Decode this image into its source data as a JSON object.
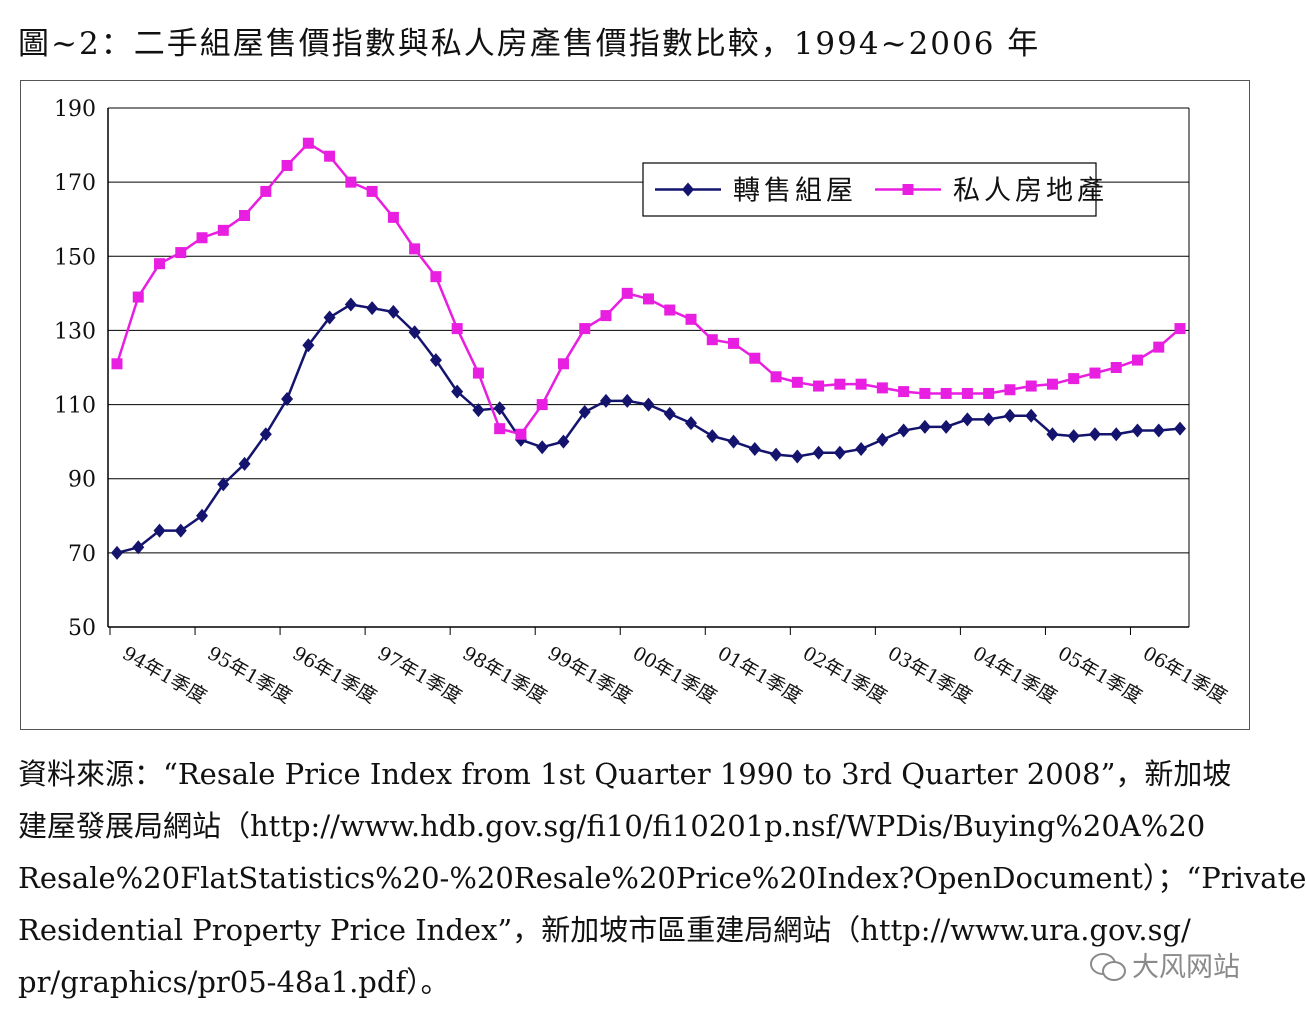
{
  "title": "圖~2：二手組屋售價指數與私人房產售價指數比較，1994~2006 年",
  "chart_data": {
    "type": "line",
    "ylim": [
      50,
      190
    ],
    "yticks": [
      50,
      70,
      90,
      110,
      130,
      150,
      170,
      190
    ],
    "x_tick_labels": [
      "94年1季度",
      "95年1季度",
      "96年1季度",
      "97年1季度",
      "98年1季度",
      "99年1季度",
      "00年1季度",
      "01年1季度",
      "02年1季度",
      "03年1季度",
      "04年1季度",
      "05年1季度",
      "06年1季度"
    ],
    "grid": true,
    "legend_position": "top-right",
    "series": [
      {
        "name": "轉售組屋",
        "color": "#14146e",
        "marker": "diamond",
        "values": [
          70,
          71.5,
          76,
          76,
          80,
          88.5,
          94,
          102,
          111.5,
          126,
          133.5,
          137,
          136,
          135,
          129.5,
          122,
          113.5,
          108.5,
          109,
          100.5,
          98.5,
          100,
          108,
          111,
          111,
          110,
          107.5,
          105,
          101.5,
          100,
          98,
          96.5,
          96,
          97,
          97,
          98,
          100.5,
          103,
          104,
          104,
          106,
          106,
          107,
          107,
          102,
          101.5,
          102,
          102,
          103,
          103,
          103.5
        ]
      },
      {
        "name": "私人房地產",
        "color": "#e81ee0",
        "marker": "square",
        "values": [
          121,
          139,
          148,
          151,
          155,
          157,
          161,
          167.5,
          174.5,
          180.5,
          177,
          170,
          167.5,
          160.5,
          152,
          144.5,
          130.5,
          118.5,
          103.5,
          102,
          110,
          121,
          130.5,
          134,
          140,
          138.5,
          135.5,
          133,
          127.5,
          126.5,
          122.5,
          117.5,
          116,
          115,
          115.5,
          115.5,
          114.5,
          113.5,
          113,
          113,
          113,
          113,
          114,
          115,
          115.5,
          117,
          118.5,
          120,
          122,
          125.5,
          130.5
        ]
      }
    ]
  },
  "source": {
    "lines": [
      "資料來源：“Resale Price Index from 1st Quarter 1990 to 3rd Quarter 2008”，新加坡",
      "建屋發展局網站（http://www.hdb.gov.sg/fi10/fi10201p.nsf/WPDis/Buying%20A%20",
      "Resale%20FlatStatistics%20-%20Resale%20Price%20Index?OpenDocument）；“Private",
      "Residential Property Price Index”，新加坡市區重建局網站（http://www.ura.gov.sg/",
      "pr/graphics/pr05-48a1.pdf）。"
    ]
  },
  "watermark": {
    "icon": "wechat-icon",
    "text": "大风网站"
  }
}
